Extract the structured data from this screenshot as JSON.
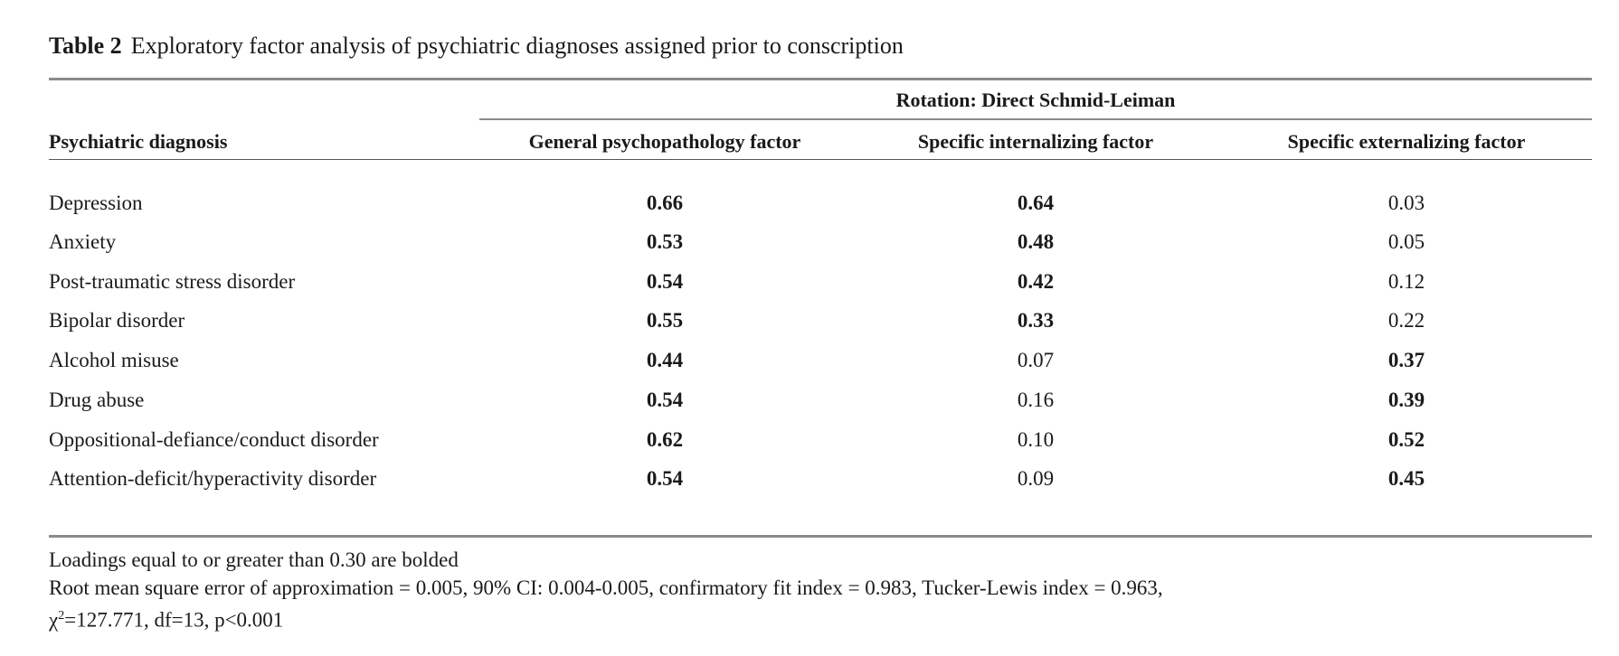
{
  "table": {
    "label": "Table 2",
    "title": "Exploratory factor analysis of psychiatric diagnoses assigned prior to conscription",
    "spanner": "Rotation: Direct Schmid-Leiman",
    "headers": {
      "diagnosis": "Psychiatric diagnosis",
      "general": "General psychopathology factor",
      "internalizing": "Specific internalizing factor",
      "externalizing": "Specific externalizing factor"
    },
    "rows": [
      {
        "diagnosis": "Depression",
        "general": "0.66",
        "internalizing": "0.64",
        "externalizing": "0.03",
        "bold": [
          true,
          true,
          false
        ]
      },
      {
        "diagnosis": "Anxiety",
        "general": "0.53",
        "internalizing": "0.48",
        "externalizing": "0.05",
        "bold": [
          true,
          true,
          false
        ]
      },
      {
        "diagnosis": "Post-traumatic stress disorder",
        "general": "0.54",
        "internalizing": "0.42",
        "externalizing": "0.12",
        "bold": [
          true,
          true,
          false
        ]
      },
      {
        "diagnosis": "Bipolar disorder",
        "general": "0.55",
        "internalizing": "0.33",
        "externalizing": "0.22",
        "bold": [
          true,
          true,
          false
        ]
      },
      {
        "diagnosis": "Alcohol misuse",
        "general": "0.44",
        "internalizing": "0.07",
        "externalizing": "0.37",
        "bold": [
          true,
          false,
          true
        ]
      },
      {
        "diagnosis": "Drug abuse",
        "general": "0.54",
        "internalizing": "0.16",
        "externalizing": "0.39",
        "bold": [
          true,
          false,
          true
        ]
      },
      {
        "diagnosis": "Oppositional-defiance/conduct disorder",
        "general": "0.62",
        "internalizing": "0.10",
        "externalizing": "0.52",
        "bold": [
          true,
          false,
          true
        ]
      },
      {
        "diagnosis": "Attention-deficit/hyperactivity disorder",
        "general": "0.54",
        "internalizing": "0.09",
        "externalizing": "0.45",
        "bold": [
          true,
          false,
          true
        ]
      }
    ],
    "notes": {
      "line1": "Loadings equal to or greater than 0.30 are bolded",
      "line2": "Root mean square error of approximation = 0.005, 90% CI: 0.004-0.005, confirmatory fit index = 0.983, Tucker-Lewis index = 0.963,",
      "line3_chi": "χ",
      "line3_sup": "2",
      "line3_rest": "=127.771, df=13, p<0.001"
    }
  }
}
